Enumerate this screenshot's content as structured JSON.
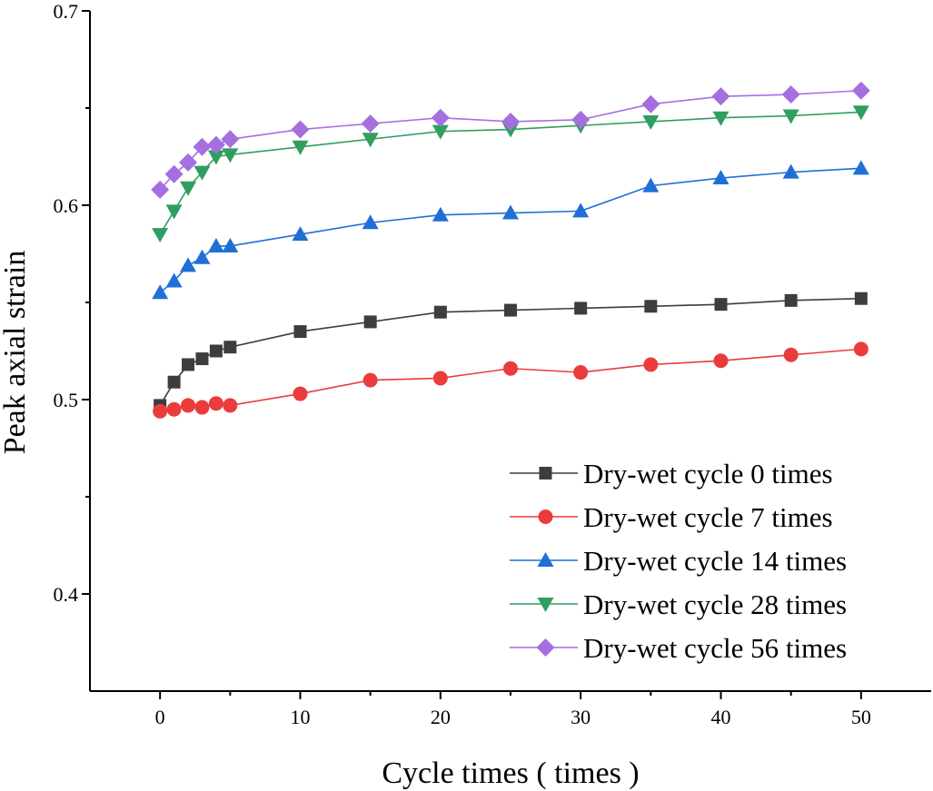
{
  "chart_data": {
    "type": "line",
    "title": "",
    "xlabel": "Cycle times ( times )",
    "ylabel": "Peak axial strain",
    "xlim": [
      -5,
      55
    ],
    "ylim": [
      0.35,
      0.7
    ],
    "xticks": [
      0,
      10,
      20,
      30,
      40,
      50
    ],
    "xtick_labels": [
      "0",
      "10",
      "20",
      "30",
      "40",
      "50"
    ],
    "yticks": [
      0.4,
      0.5,
      0.6,
      0.7
    ],
    "ytick_labels": [
      "0.4",
      "0.5",
      "0.6",
      "0.7"
    ],
    "grid": false,
    "legend_position": "bottom-right",
    "x": [
      0,
      1,
      2,
      3,
      4,
      5,
      10,
      15,
      20,
      25,
      30,
      35,
      40,
      45,
      50
    ],
    "series": [
      {
        "name": "Dry-wet cycle 0 times",
        "color": "#3d3d3d",
        "marker": "square",
        "values": [
          0.497,
          0.509,
          0.518,
          0.521,
          0.525,
          0.527,
          0.535,
          0.54,
          0.545,
          0.546,
          0.547,
          0.548,
          0.549,
          0.551,
          0.552
        ]
      },
      {
        "name": "Dry-wet cycle 7 times",
        "color": "#ea3c3c",
        "marker": "circle",
        "values": [
          0.494,
          0.495,
          0.497,
          0.496,
          0.498,
          0.497,
          0.503,
          0.51,
          0.511,
          0.516,
          0.514,
          0.518,
          0.52,
          0.523,
          0.526
        ]
      },
      {
        "name": "Dry-wet cycle 14 times",
        "color": "#1f6fd6",
        "marker": "triangle-up",
        "values": [
          0.555,
          0.561,
          0.569,
          0.573,
          0.579,
          0.579,
          0.585,
          0.591,
          0.595,
          0.596,
          0.597,
          0.61,
          0.614,
          0.617,
          0.619
        ]
      },
      {
        "name": "Dry-wet cycle 28 times",
        "color": "#2f9e5f",
        "marker": "triangle-down",
        "values": [
          0.585,
          0.597,
          0.609,
          0.617,
          0.625,
          0.626,
          0.63,
          0.634,
          0.638,
          0.639,
          0.641,
          0.643,
          0.645,
          0.646,
          0.648
        ]
      },
      {
        "name": "Dry-wet cycle 56 times",
        "color": "#a66fe0",
        "marker": "diamond",
        "values": [
          0.608,
          0.616,
          0.622,
          0.63,
          0.631,
          0.634,
          0.639,
          0.642,
          0.645,
          0.643,
          0.644,
          0.652,
          0.656,
          0.657,
          0.659
        ]
      }
    ]
  }
}
